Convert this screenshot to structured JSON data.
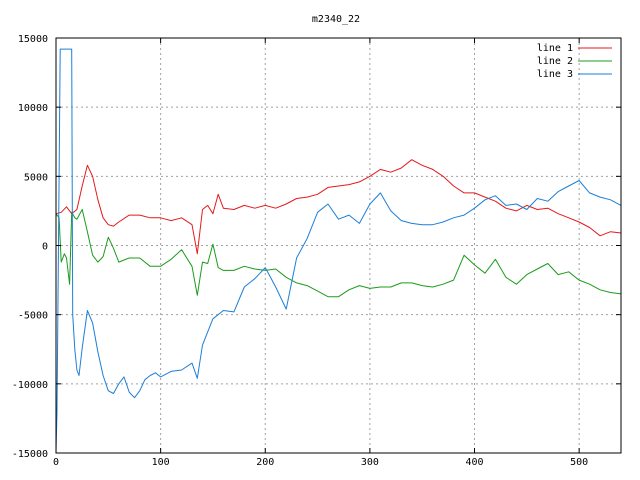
{
  "chart_data": {
    "type": "line",
    "title": "m2340_22",
    "xlabel": "",
    "ylabel": "",
    "xlim": [
      0,
      540
    ],
    "ylim": [
      -15000,
      15000
    ],
    "grid": true,
    "legend_position": "top-right",
    "x_ticks": [
      "0",
      "100",
      "200",
      "300",
      "400",
      "500"
    ],
    "y_ticks": [
      "15000",
      "10000",
      "5000",
      "0",
      "-5000",
      "-10000",
      "-15000"
    ],
    "series": [
      {
        "name": "line 1",
        "color": "#e41a1c",
        "x": [
          0,
          5,
          10,
          15,
          20,
          25,
          30,
          35,
          40,
          45,
          50,
          55,
          60,
          70,
          80,
          90,
          100,
          110,
          120,
          130,
          135,
          140,
          145,
          150,
          155,
          160,
          170,
          180,
          190,
          200,
          210,
          220,
          230,
          240,
          250,
          260,
          270,
          280,
          290,
          300,
          310,
          320,
          330,
          340,
          350,
          360,
          370,
          380,
          390,
          400,
          410,
          420,
          430,
          440,
          450,
          460,
          470,
          480,
          490,
          500,
          510,
          520,
          530,
          540
        ],
        "y": [
          2300,
          2400,
          2800,
          2300,
          2600,
          4300,
          5800,
          5000,
          3300,
          2000,
          1500,
          1400,
          1700,
          2200,
          2200,
          2000,
          2000,
          1800,
          2000,
          1500,
          -600,
          2600,
          2900,
          2300,
          3700,
          2700,
          2600,
          2900,
          2700,
          2900,
          2700,
          3000,
          3400,
          3500,
          3700,
          4200,
          4300,
          4400,
          4600,
          5000,
          5500,
          5300,
          5600,
          6200,
          5800,
          5500,
          5000,
          4300,
          3800,
          3800,
          3500,
          3200,
          2700,
          2500,
          2900,
          2600,
          2700,
          2300,
          2000,
          1700,
          1300,
          700,
          1000,
          900
        ]
      },
      {
        "name": "line 2",
        "color": "#1a9c1a",
        "x": [
          0,
          3,
          5,
          8,
          10,
          13,
          15,
          18,
          20,
          25,
          30,
          35,
          40,
          45,
          50,
          55,
          60,
          70,
          80,
          90,
          100,
          110,
          120,
          130,
          135,
          140,
          145,
          150,
          155,
          160,
          170,
          180,
          190,
          200,
          210,
          220,
          230,
          240,
          250,
          260,
          270,
          280,
          290,
          300,
          310,
          320,
          330,
          340,
          350,
          360,
          370,
          380,
          390,
          400,
          410,
          420,
          430,
          440,
          450,
          460,
          470,
          480,
          490,
          500,
          510,
          520,
          530,
          540
        ],
        "y": [
          2300,
          2000,
          -1200,
          -600,
          -900,
          -2800,
          2400,
          2000,
          1900,
          2600,
          1000,
          -700,
          -1200,
          -800,
          600,
          -200,
          -1200,
          -900,
          -900,
          -1500,
          -1500,
          -1000,
          -300,
          -1500,
          -3600,
          -1200,
          -1300,
          100,
          -1600,
          -1800,
          -1800,
          -1500,
          -1700,
          -1800,
          -1700,
          -2300,
          -2700,
          -2900,
          -3300,
          -3700,
          -3700,
          -3200,
          -2900,
          -3100,
          -3000,
          -3000,
          -2700,
          -2700,
          -2900,
          -3000,
          -2800,
          -2500,
          -700,
          -1400,
          -2000,
          -1000,
          -2300,
          -2800,
          -2100,
          -1700,
          -1300,
          -2100,
          -1900,
          -2500,
          -2800,
          -3200,
          -3400,
          -3500
        ]
      },
      {
        "name": "line 3",
        "color": "#1c7fd8",
        "x": [
          0,
          1,
          2,
          3,
          4,
          5,
          8,
          10,
          12,
          15,
          16,
          18,
          20,
          22,
          25,
          30,
          35,
          40,
          45,
          50,
          55,
          60,
          65,
          70,
          75,
          80,
          85,
          90,
          95,
          100,
          110,
          120,
          130,
          135,
          140,
          150,
          160,
          170,
          180,
          190,
          200,
          210,
          220,
          230,
          240,
          250,
          260,
          270,
          280,
          290,
          300,
          310,
          320,
          330,
          340,
          350,
          360,
          370,
          380,
          390,
          400,
          410,
          420,
          430,
          440,
          450,
          460,
          470,
          480,
          490,
          500,
          510,
          520,
          530,
          540
        ],
        "y": [
          -15000,
          -12000,
          -3000,
          5000,
          14200,
          14200,
          14200,
          14200,
          14200,
          14200,
          -5000,
          -7500,
          -9000,
          -9400,
          -7400,
          -4700,
          -5600,
          -7700,
          -9400,
          -10500,
          -10700,
          -10000,
          -9500,
          -10600,
          -11000,
          -10500,
          -9700,
          -9400,
          -9200,
          -9500,
          -9100,
          -9000,
          -8500,
          -9600,
          -7200,
          -5300,
          -4700,
          -4800,
          -3000,
          -2400,
          -1600,
          -3000,
          -4600,
          -900,
          500,
          2400,
          3000,
          1900,
          2200,
          1600,
          3000,
          3800,
          2500,
          1800,
          1600,
          1500,
          1500,
          1700,
          2000,
          2200,
          2700,
          3300,
          3600,
          2900,
          3000,
          2600,
          3400,
          3200,
          3900,
          4300,
          4700,
          3800,
          3500,
          3300,
          2900
        ]
      }
    ]
  }
}
